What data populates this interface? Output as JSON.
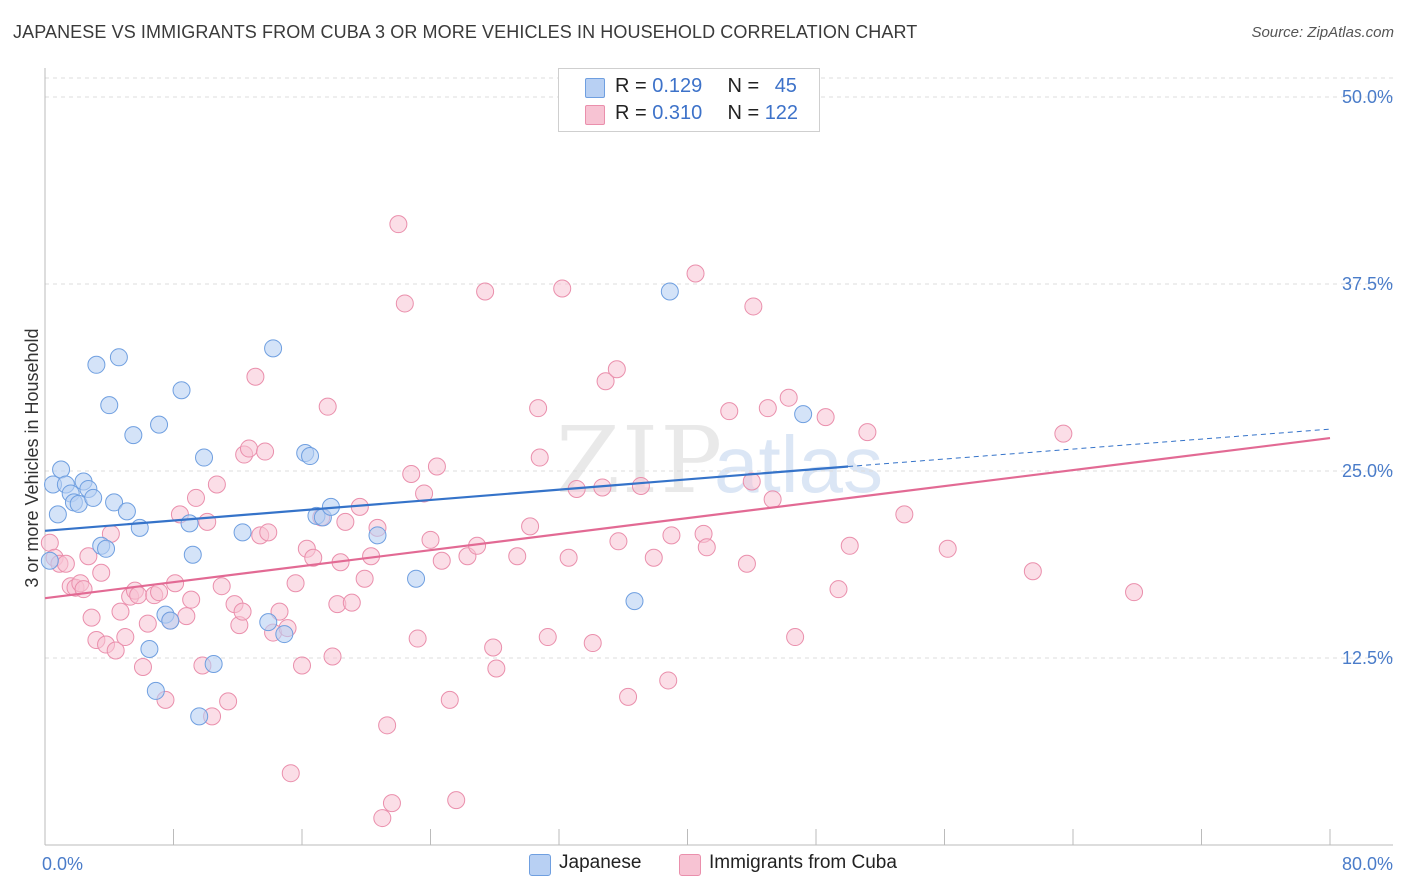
{
  "title": "JAPANESE VS IMMIGRANTS FROM CUBA 3 OR MORE VEHICLES IN HOUSEHOLD CORRELATION CHART",
  "source": "Source: ZipAtlas.com",
  "watermark": {
    "zip": "ZIP",
    "atlas": "atlas"
  },
  "legend": {
    "rows": [
      {
        "r_label": "R = ",
        "r_value": "0.129",
        "n_label": "N = ",
        "n_value": "45"
      },
      {
        "r_label": "R = ",
        "r_value": "0.310",
        "n_label": "N = ",
        "n_value": "122"
      }
    ]
  },
  "colors": {
    "japanese_fill": "#b8d0f3",
    "japanese_stroke": "#6f9fe0",
    "japanese_line": "#3573c9",
    "cuba_fill": "#f7c3d3",
    "cuba_stroke": "#ea8fac",
    "cuba_line": "#e26a94",
    "grid": "#dcdcdc",
    "axis": "#bbbbbb",
    "tick_text": "#4a7cc9"
  },
  "chart_data": {
    "type": "scatter",
    "title": "JAPANESE VS IMMIGRANTS FROM CUBA 3 OR MORE VEHICLES IN HOUSEHOLD CORRELATION CHART",
    "xlabel": "",
    "ylabel": "3 or more Vehicles in Household",
    "xlim": [
      0,
      80
    ],
    "ylim": [
      0,
      50
    ],
    "x_tick_labels": [
      "0.0%",
      "80.0%"
    ],
    "y_ticks": [
      12.5,
      25.0,
      37.5,
      50.0
    ],
    "y_tick_labels": [
      "12.5%",
      "25.0%",
      "37.5%",
      "50.0%"
    ],
    "grid": true,
    "legend_position": "top-center",
    "series": [
      {
        "name": "Japanese",
        "r": 0.129,
        "n": 45,
        "trend": {
          "x0": 0,
          "y0": 21.0,
          "x1": 50,
          "y1": 25.3,
          "dash_to_x": 80,
          "dash_to_y": 27.8
        },
        "points": [
          [
            0.3,
            19.0
          ],
          [
            0.5,
            24.1
          ],
          [
            0.8,
            22.1
          ],
          [
            1.0,
            25.1
          ],
          [
            1.3,
            24.1
          ],
          [
            1.6,
            23.5
          ],
          [
            1.8,
            22.9
          ],
          [
            2.1,
            22.8
          ],
          [
            2.4,
            24.3
          ],
          [
            2.7,
            23.8
          ],
          [
            3.0,
            23.2
          ],
          [
            3.2,
            32.1
          ],
          [
            3.5,
            20.0
          ],
          [
            3.8,
            19.8
          ],
          [
            4.0,
            29.4
          ],
          [
            4.3,
            22.9
          ],
          [
            4.6,
            32.6
          ],
          [
            5.1,
            22.3
          ],
          [
            5.5,
            27.4
          ],
          [
            5.9,
            21.2
          ],
          [
            6.5,
            13.1
          ],
          [
            6.9,
            10.3
          ],
          [
            7.1,
            28.1
          ],
          [
            7.5,
            15.4
          ],
          [
            7.8,
            15.0
          ],
          [
            8.5,
            30.4
          ],
          [
            9.0,
            21.5
          ],
          [
            9.2,
            19.4
          ],
          [
            9.6,
            8.6
          ],
          [
            9.9,
            25.9
          ],
          [
            10.5,
            12.1
          ],
          [
            12.3,
            20.9
          ],
          [
            13.9,
            14.9
          ],
          [
            14.2,
            33.2
          ],
          [
            14.9,
            14.1
          ],
          [
            16.2,
            26.2
          ],
          [
            16.5,
            26.0
          ],
          [
            16.9,
            22.0
          ],
          [
            17.3,
            21.9
          ],
          [
            17.8,
            22.6
          ],
          [
            20.7,
            20.7
          ],
          [
            23.1,
            17.8
          ],
          [
            36.7,
            16.3
          ],
          [
            38.9,
            37.0
          ],
          [
            47.2,
            28.8
          ]
        ]
      },
      {
        "name": "Immigrants from Cuba",
        "r": 0.31,
        "n": 122,
        "trend": {
          "x0": 0,
          "y0": 16.5,
          "x1": 80,
          "y1": 27.2
        },
        "points": [
          [
            0.3,
            20.2
          ],
          [
            0.6,
            19.2
          ],
          [
            0.9,
            18.8
          ],
          [
            1.3,
            18.8
          ],
          [
            1.6,
            17.3
          ],
          [
            1.9,
            17.2
          ],
          [
            2.2,
            17.5
          ],
          [
            2.4,
            17.1
          ],
          [
            2.7,
            19.3
          ],
          [
            2.9,
            15.2
          ],
          [
            3.2,
            13.7
          ],
          [
            3.5,
            18.2
          ],
          [
            3.8,
            13.4
          ],
          [
            4.1,
            20.8
          ],
          [
            4.4,
            13.0
          ],
          [
            4.7,
            15.6
          ],
          [
            5.0,
            13.9
          ],
          [
            5.3,
            16.6
          ],
          [
            5.6,
            17.0
          ],
          [
            5.8,
            16.7
          ],
          [
            6.1,
            11.9
          ],
          [
            6.4,
            14.8
          ],
          [
            6.8,
            16.7
          ],
          [
            7.1,
            16.9
          ],
          [
            7.5,
            9.7
          ],
          [
            7.8,
            15.0
          ],
          [
            8.1,
            17.5
          ],
          [
            8.4,
            22.1
          ],
          [
            8.8,
            15.3
          ],
          [
            9.1,
            16.4
          ],
          [
            9.4,
            23.2
          ],
          [
            9.8,
            12.0
          ],
          [
            10.1,
            21.6
          ],
          [
            10.4,
            8.6
          ],
          [
            10.7,
            24.1
          ],
          [
            11.0,
            17.3
          ],
          [
            11.4,
            9.6
          ],
          [
            11.8,
            16.1
          ],
          [
            12.1,
            14.7
          ],
          [
            12.3,
            15.6
          ],
          [
            12.4,
            26.1
          ],
          [
            12.7,
            26.5
          ],
          [
            13.1,
            31.3
          ],
          [
            13.4,
            20.7
          ],
          [
            13.7,
            26.3
          ],
          [
            13.9,
            20.9
          ],
          [
            14.2,
            14.2
          ],
          [
            14.6,
            15.6
          ],
          [
            15.1,
            14.5
          ],
          [
            15.3,
            4.8
          ],
          [
            15.6,
            17.5
          ],
          [
            16.0,
            12.0
          ],
          [
            16.3,
            19.8
          ],
          [
            16.7,
            19.2
          ],
          [
            17.2,
            21.9
          ],
          [
            17.6,
            29.3
          ],
          [
            17.9,
            12.6
          ],
          [
            18.2,
            16.1
          ],
          [
            18.4,
            18.9
          ],
          [
            18.7,
            21.6
          ],
          [
            19.1,
            16.2
          ],
          [
            19.6,
            22.6
          ],
          [
            19.9,
            17.8
          ],
          [
            20.3,
            19.3
          ],
          [
            20.7,
            21.2
          ],
          [
            21.0,
            1.8
          ],
          [
            21.3,
            8.0
          ],
          [
            21.6,
            2.8
          ],
          [
            22.0,
            41.5
          ],
          [
            22.4,
            36.2
          ],
          [
            22.8,
            24.8
          ],
          [
            23.2,
            13.8
          ],
          [
            23.6,
            23.5
          ],
          [
            24.0,
            20.4
          ],
          [
            24.4,
            25.3
          ],
          [
            24.7,
            19.0
          ],
          [
            25.2,
            9.7
          ],
          [
            25.6,
            3.0
          ],
          [
            26.3,
            19.3
          ],
          [
            26.9,
            20.0
          ],
          [
            27.4,
            37.0
          ],
          [
            27.9,
            13.2
          ],
          [
            28.1,
            11.8
          ],
          [
            29.4,
            19.3
          ],
          [
            30.2,
            21.3
          ],
          [
            30.7,
            29.2
          ],
          [
            30.8,
            25.9
          ],
          [
            31.3,
            13.9
          ],
          [
            32.2,
            37.2
          ],
          [
            32.6,
            19.2
          ],
          [
            33.1,
            23.8
          ],
          [
            34.1,
            13.5
          ],
          [
            34.7,
            23.9
          ],
          [
            34.9,
            31.0
          ],
          [
            35.6,
            31.8
          ],
          [
            35.7,
            20.3
          ],
          [
            36.3,
            9.9
          ],
          [
            37.1,
            24.0
          ],
          [
            37.9,
            19.2
          ],
          [
            38.8,
            11.0
          ],
          [
            39.0,
            20.7
          ],
          [
            40.5,
            38.2
          ],
          [
            41.0,
            20.8
          ],
          [
            41.2,
            19.9
          ],
          [
            42.6,
            29.0
          ],
          [
            43.7,
            18.8
          ],
          [
            44.0,
            24.3
          ],
          [
            44.1,
            36.0
          ],
          [
            45.0,
            29.2
          ],
          [
            45.3,
            23.1
          ],
          [
            46.3,
            29.9
          ],
          [
            46.7,
            13.9
          ],
          [
            48.6,
            28.6
          ],
          [
            49.4,
            17.1
          ],
          [
            50.1,
            20.0
          ],
          [
            51.2,
            27.6
          ],
          [
            53.5,
            22.1
          ],
          [
            56.2,
            19.8
          ],
          [
            61.5,
            18.3
          ],
          [
            63.4,
            27.5
          ],
          [
            67.8,
            16.9
          ]
        ]
      }
    ]
  },
  "bottom_legend": {
    "japanese": "Japanese",
    "cuba": "Immigrants from Cuba"
  }
}
